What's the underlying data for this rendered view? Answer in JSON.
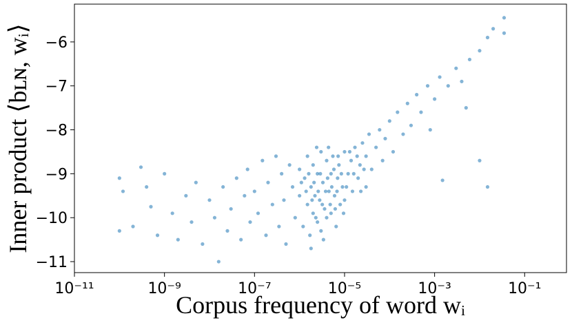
{
  "chart_data": {
    "type": "scatter",
    "xlabel": "Corpus frequency of word wᵢ",
    "ylabel": "Inner product ⟨bʟɴ, wᵢ⟩",
    "color": "#1f77b4",
    "xscale": "log",
    "xlim": [
      1e-11,
      0.85
    ],
    "ylim": [
      -11.25,
      -5.14
    ],
    "xticks": [
      {
        "value": 1e-11,
        "label": "10⁻¹¹"
      },
      {
        "value": 1e-09,
        "label": "10⁻⁹"
      },
      {
        "value": 1e-07,
        "label": "10⁻⁷"
      },
      {
        "value": 1e-05,
        "label": "10⁻⁵"
      },
      {
        "value": 0.001,
        "label": "10⁻³"
      },
      {
        "value": 0.1,
        "label": "10⁻¹"
      }
    ],
    "yticks": [
      {
        "value": -11,
        "label": "−11"
      },
      {
        "value": -10,
        "label": "−10"
      },
      {
        "value": -9,
        "label": "−9"
      },
      {
        "value": -8,
        "label": "−8"
      },
      {
        "value": -7,
        "label": "−7"
      },
      {
        "value": -6,
        "label": "−6"
      }
    ],
    "x": [
      1e-10,
      1e-10,
      1.2e-10,
      2e-10,
      3e-10,
      4e-10,
      5e-10,
      7e-10,
      1e-09,
      1.5e-09,
      2e-09,
      3e-09,
      4e-09,
      5e-09,
      7e-09,
      1e-08,
      1.3e-08,
      1.6e-08,
      2e-08,
      2.5e-08,
      3e-08,
      4e-08,
      5e-08,
      6e-08,
      7e-08,
      8e-08,
      1e-07,
      1.2e-07,
      1.5e-07,
      1.8e-07,
      2e-07,
      2.5e-07,
      3e-07,
      3.5e-07,
      4e-07,
      4.5e-07,
      5e-07,
      6e-07,
      7e-07,
      8e-07,
      1e-06,
      1e-06,
      1.2e-06,
      1.3e-06,
      1.5e-06,
      1.5e-06,
      1.7e-06,
      1.8e-06,
      2e-06,
      2e-06,
      2.2e-06,
      2.5e-06,
      2.5e-06,
      2.8e-06,
      3e-06,
      3e-06,
      3.3e-06,
      3.6e-06,
      4e-06,
      4e-06,
      4.5e-06,
      5e-06,
      5e-06,
      5.5e-06,
      6e-06,
      6.5e-06,
      7e-06,
      7.5e-06,
      8e-06,
      9e-06,
      1e-05,
      1e-05,
      1.2e-05,
      1.4e-05,
      1.5e-05,
      1.7e-05,
      2e-05,
      2.2e-05,
      2.5e-05,
      3e-05,
      3e-05,
      3.5e-05,
      4e-05,
      5e-05,
      6e-05,
      7e-05,
      8e-05,
      0.0001,
      0.00012,
      0.00015,
      0.0002,
      0.00025,
      0.0003,
      0.0004,
      0.0005,
      0.0007,
      0.001,
      0.0013,
      0.002,
      0.003,
      0.004,
      0.006,
      0.01,
      0.015,
      0.02,
      0.035,
      0.035,
      0.005,
      0.01,
      0.015,
      0.0015,
      0.0008,
      1.1e-06,
      1.4e-06,
      1.6e-06,
      1.9e-06,
      2.1e-06,
      2.3e-06,
      2.6e-06,
      2.9e-06,
      3.2e-06,
      3.4e-06,
      3.8e-06,
      4.2e-06,
      4.8e-06,
      5.2e-06,
      5.8e-06,
      6.2e-06,
      6.8e-06,
      7.2e-06,
      8.5e-06,
      9.5e-06,
      1.1e-05,
      1.3e-05,
      1.6e-05,
      1.9e-05,
      2.3e-05,
      2.7e-05,
      1.8e-06,
      2.4e-06,
      4.4e-06
    ],
    "values": [
      -9.1,
      -10.3,
      -9.4,
      -10.2,
      -8.85,
      -9.3,
      -9.75,
      -10.4,
      -9.0,
      -9.9,
      -10.5,
      -9.5,
      -10.1,
      -9.2,
      -10.6,
      -9.6,
      -10.0,
      -11.0,
      -9.3,
      -10.3,
      -9.8,
      -9.1,
      -10.5,
      -9.5,
      -8.9,
      -10.1,
      -9.4,
      -9.9,
      -8.7,
      -10.4,
      -9.2,
      -9.7,
      -8.6,
      -10.2,
      -9.0,
      -9.6,
      -10.6,
      -8.8,
      -9.3,
      -10.0,
      -9.5,
      -8.9,
      -10.2,
      -9.1,
      -9.7,
      -8.6,
      -10.4,
      -9.3,
      -9.9,
      -8.8,
      -9.5,
      -10.1,
      -9.0,
      -9.6,
      -8.5,
      -10.3,
      -9.2,
      -9.8,
      -8.7,
      -10.0,
      -9.4,
      -9.0,
      -9.9,
      -8.6,
      -9.5,
      -10.2,
      -9.1,
      -8.8,
      -9.7,
      -9.3,
      -8.5,
      -9.6,
      -9.0,
      -8.7,
      -9.4,
      -8.4,
      -9.1,
      -8.8,
      -8.3,
      -9.3,
      -8.6,
      -8.1,
      -8.9,
      -8.4,
      -8.0,
      -8.7,
      -8.2,
      -7.8,
      -8.5,
      -7.6,
      -8.1,
      -7.4,
      -7.9,
      -7.2,
      -7.6,
      -7.0,
      -7.3,
      -6.8,
      -7.0,
      -6.6,
      -6.9,
      -6.4,
      -6.2,
      -5.9,
      -5.7,
      -5.45,
      -5.8,
      -7.5,
      -8.7,
      -9.3,
      -9.15,
      -8.0,
      -9.2,
      -9.4,
      -9.0,
      -9.6,
      -9.2,
      -10.0,
      -9.4,
      -9.0,
      -9.7,
      -10.5,
      -9.4,
      -9.1,
      -9.7,
      -9.3,
      -8.9,
      -9.8,
      -9.4,
      -8.6,
      -9.0,
      -9.9,
      -9.3,
      -8.5,
      -9.0,
      -8.6,
      -9.4,
      -8.9,
      -10.7,
      -8.4,
      -8.4
    ]
  }
}
